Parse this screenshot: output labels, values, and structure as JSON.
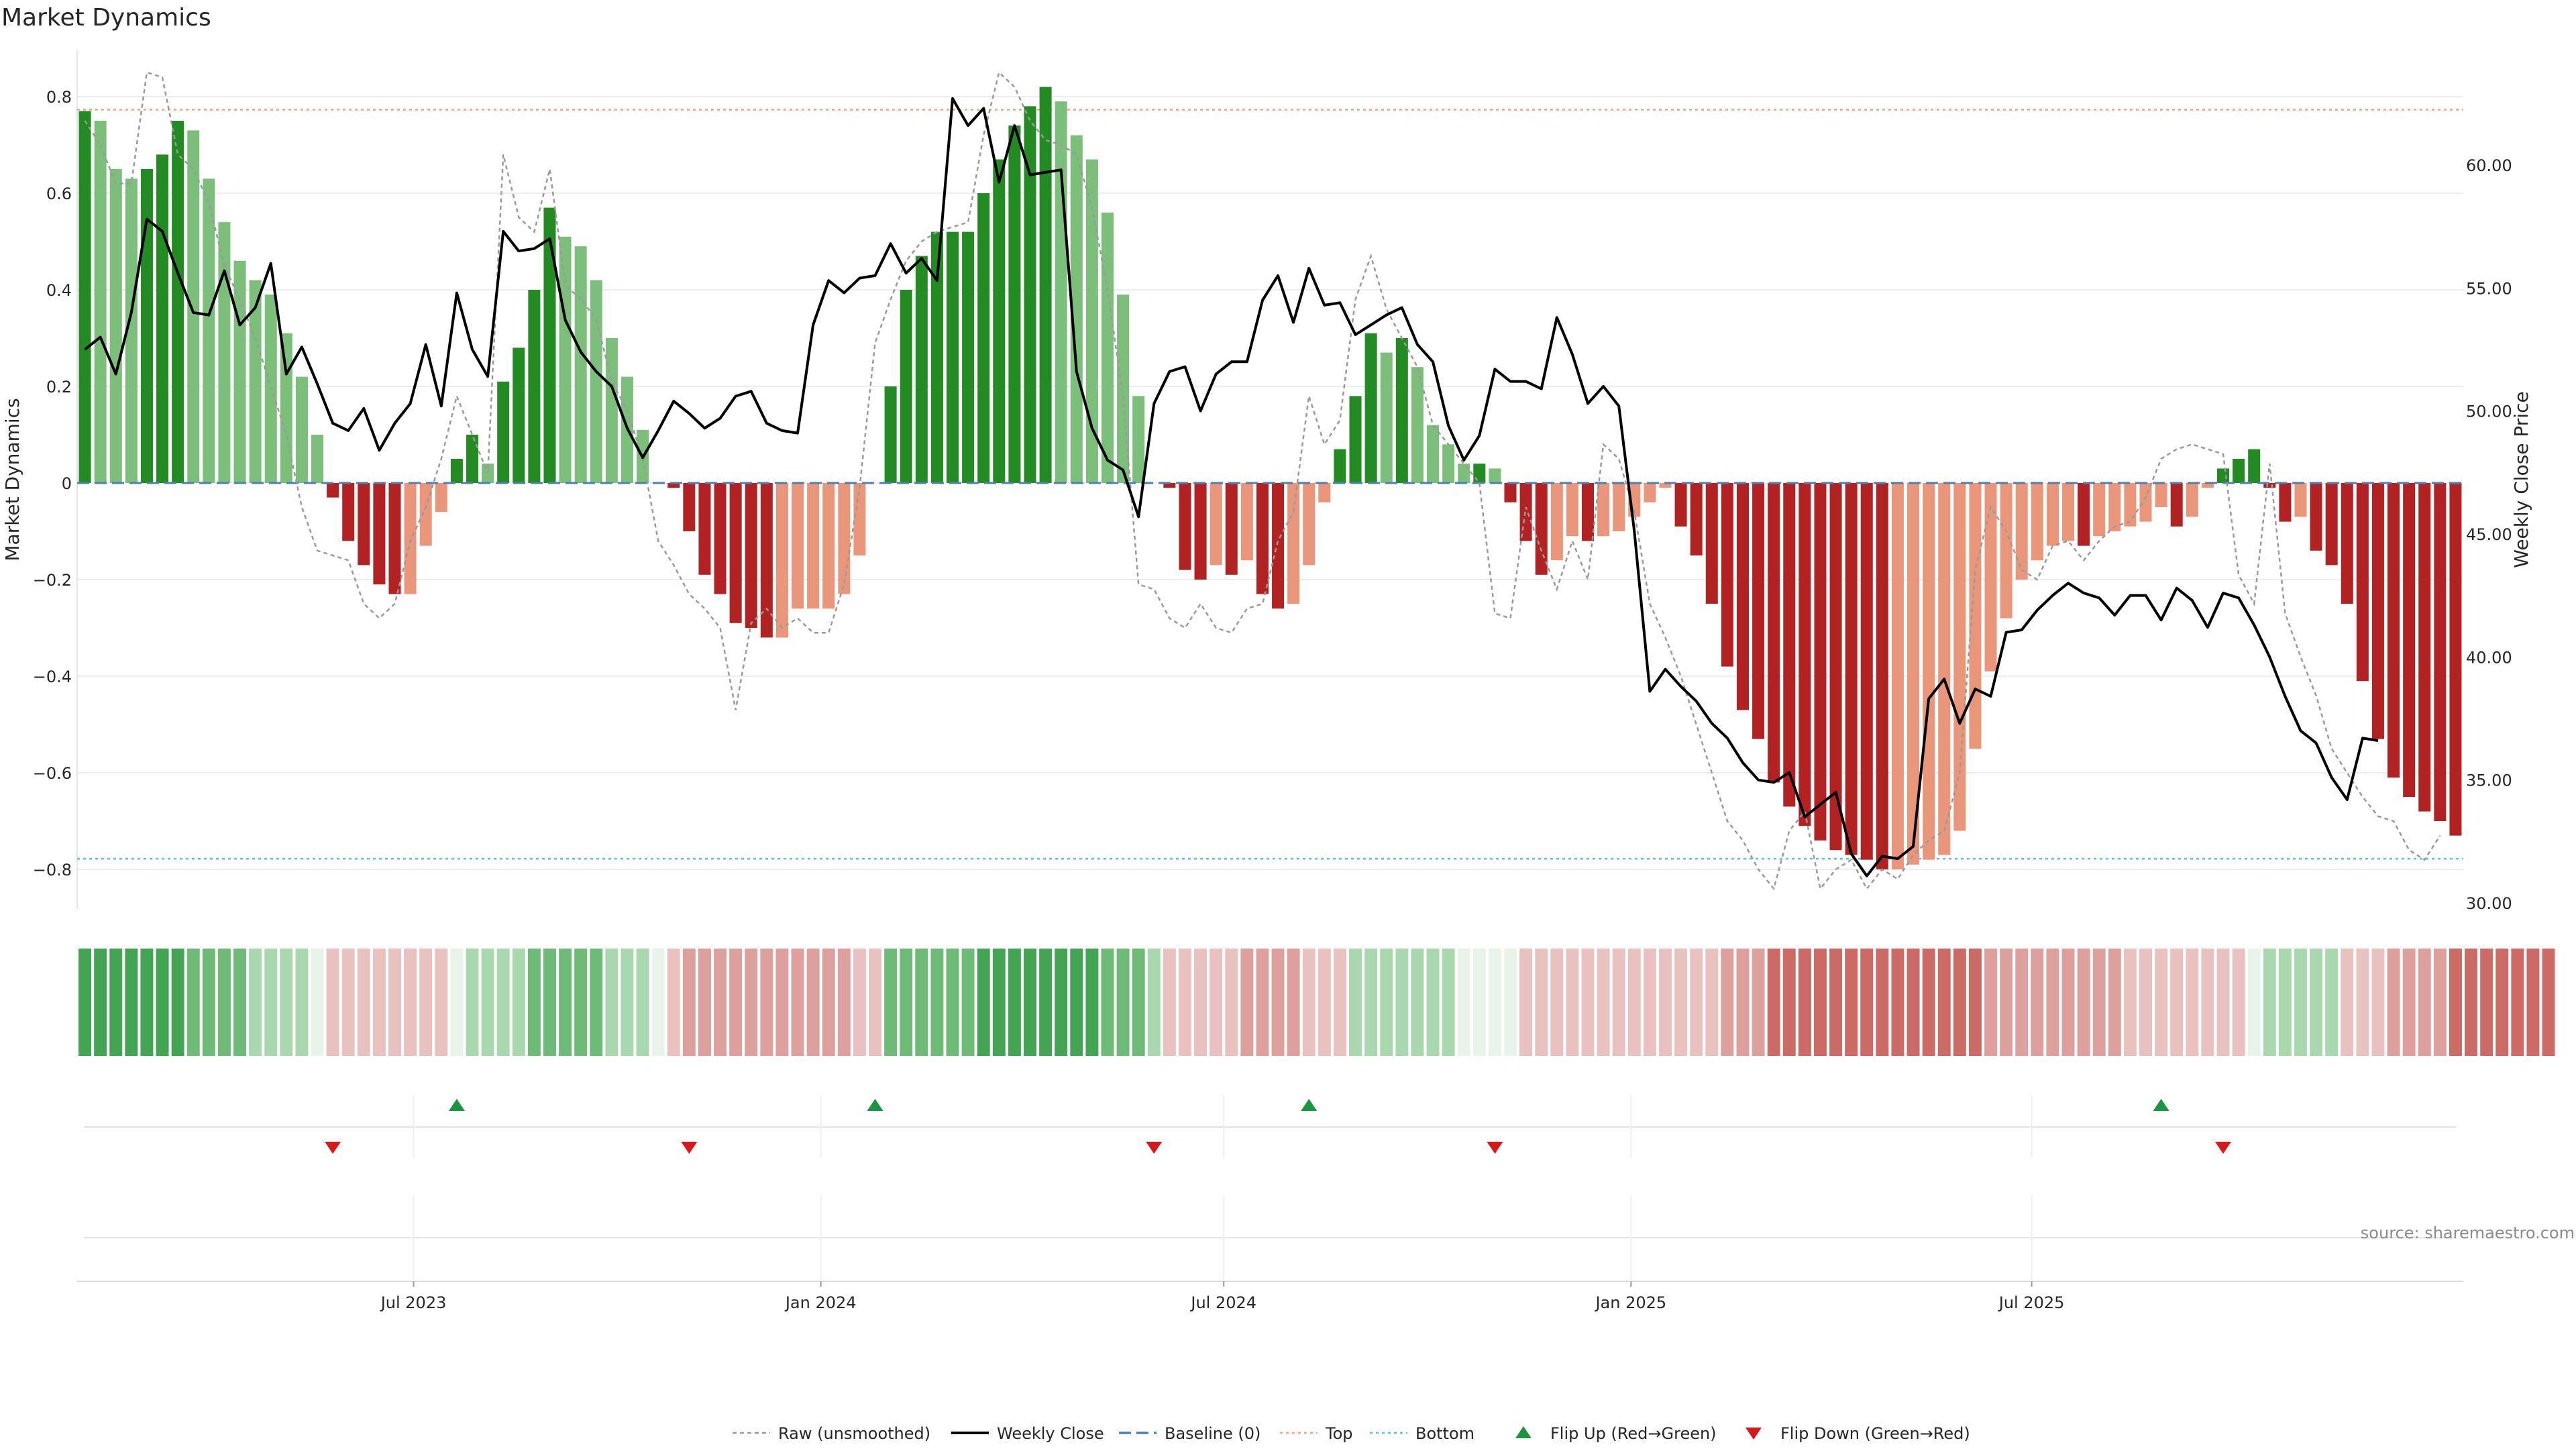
{
  "title": "Market Dynamics",
  "source": "source: sharemaestro.com",
  "axes": {
    "left_label": "Market Dynamics",
    "right_label": "Weekly Close Price",
    "left_ticks": [
      "0.8",
      "0.6",
      "0.4",
      "0.2",
      "0",
      "−0.2",
      "−0.4",
      "−0.6",
      "−0.8"
    ],
    "right_ticks": [
      "60.00",
      "55.00",
      "50.00",
      "45.00",
      "40.00",
      "35.00",
      "30.00"
    ],
    "x_ticks": [
      "Jul 2023",
      "Jan 2024",
      "Jul 2024",
      "Jan 2025",
      "Jul 2025"
    ]
  },
  "legend": [
    {
      "key": "raw",
      "label": "Raw (unsmoothed)"
    },
    {
      "key": "close",
      "label": "Weekly Close"
    },
    {
      "key": "baseline",
      "label": "Baseline (0)"
    },
    {
      "key": "top",
      "label": "Top"
    },
    {
      "key": "bottom",
      "label": "Bottom"
    },
    {
      "key": "flip_up",
      "label": "Flip Up (Red→Green)"
    },
    {
      "key": "flip_down",
      "label": "Flip Down (Green→Red)"
    }
  ],
  "colors": {
    "dark_green": "#228b22",
    "light_green": "#7bbf7b",
    "dark_red": "#b22222",
    "light_red": "#e9967a",
    "close_line": "#000000",
    "raw_line": "#9a9a9a",
    "baseline": "#4f7fb3",
    "top": "#f0a47d",
    "bottom": "#5fbfcf",
    "flip_up": "#1a9641",
    "flip_down": "#d7191c"
  },
  "chart_data": {
    "type": "bar",
    "first_week": "2023-01-30",
    "x_ticks": [
      "Jul 2023",
      "Jan 2024",
      "Jul 2024",
      "Jan 2025",
      "Jul 2025"
    ],
    "ylim": [
      -0.88,
      0.88
    ],
    "ylim_right": [
      29.5,
      64.5
    ],
    "top_line": 0.773,
    "bottom_line": -0.778,
    "baseline": 0,
    "series": [
      {
        "name": "Market Dynamics",
        "type": "bar",
        "values": [
          0.77,
          0.75,
          0.65,
          0.63,
          0.65,
          0.68,
          0.75,
          0.73,
          0.63,
          0.54,
          0.46,
          0.42,
          0.39,
          0.31,
          0.22,
          0.1,
          -0.03,
          -0.12,
          -0.17,
          -0.21,
          -0.23,
          -0.23,
          -0.13,
          -0.06,
          0.05,
          0.1,
          0.04,
          0.21,
          0.28,
          0.4,
          0.57,
          0.51,
          0.49,
          0.42,
          0.3,
          0.22,
          0.11,
          0,
          -0.01,
          -0.1,
          -0.19,
          -0.23,
          -0.29,
          -0.3,
          -0.32,
          -0.32,
          -0.26,
          -0.26,
          -0.26,
          -0.23,
          -0.15,
          0,
          0.2,
          0.4,
          0.47,
          0.52,
          0.52,
          0.52,
          0.6,
          0.67,
          0.74,
          0.78,
          0.82,
          0.79,
          0.72,
          0.67,
          0.56,
          0.39,
          0.18,
          0,
          -0.01,
          -0.18,
          -0.2,
          -0.17,
          -0.19,
          -0.16,
          -0.23,
          -0.26,
          -0.25,
          -0.17,
          -0.04,
          0.07,
          0.18,
          0.31,
          0.27,
          0.3,
          0.24,
          0.12,
          0.08,
          0.04,
          0.04,
          0.03,
          -0.04,
          -0.12,
          -0.19,
          -0.16,
          -0.11,
          -0.12,
          -0.11,
          -0.1,
          -0.07,
          -0.04,
          -0.01,
          -0.09,
          -0.15,
          -0.25,
          -0.38,
          -0.47,
          -0.53,
          -0.62,
          -0.67,
          -0.71,
          -0.74,
          -0.76,
          -0.77,
          -0.78,
          -0.8,
          -0.8,
          -0.79,
          -0.78,
          -0.77,
          -0.72,
          -0.55,
          -0.39,
          -0.28,
          -0.2,
          -0.16,
          -0.13,
          -0.12,
          -0.13,
          -0.11,
          -0.1,
          -0.09,
          -0.08,
          -0.05,
          -0.09,
          -0.07,
          -0.01,
          0.03,
          0.05,
          0.07,
          -0.01,
          -0.08,
          -0.07,
          -0.14,
          -0.17,
          -0.25,
          -0.41,
          -0.53,
          -0.61,
          -0.65,
          -0.68,
          -0.7,
          -0.73
        ]
      },
      {
        "name": "Raw (unsmoothed)",
        "type": "line",
        "values": [
          0.75,
          0.7,
          0.62,
          0.62,
          0.85,
          0.84,
          0.68,
          0.65,
          0.58,
          0.45,
          0.38,
          0.3,
          0.2,
          0.1,
          -0.05,
          -0.14,
          -0.15,
          -0.16,
          -0.25,
          -0.28,
          -0.25,
          -0.12,
          -0.05,
          0.05,
          0.18,
          0.1,
          0.02,
          0.68,
          0.55,
          0.52,
          0.65,
          0.41,
          0.38,
          0.34,
          0.21,
          0.15,
          0.05,
          -0.12,
          -0.17,
          -0.23,
          -0.26,
          -0.3,
          -0.47,
          -0.29,
          -0.26,
          -0.3,
          -0.28,
          -0.31,
          -0.31,
          -0.21,
          -0.01,
          0.29,
          0.38,
          0.46,
          0.5,
          0.52,
          0.53,
          0.54,
          0.72,
          0.85,
          0.82,
          0.75,
          0.71,
          0.7,
          0.68,
          0.57,
          0.4,
          0.18,
          -0.21,
          -0.22,
          -0.28,
          -0.3,
          -0.25,
          -0.3,
          -0.31,
          -0.26,
          -0.25,
          -0.12,
          -0.06,
          0.18,
          0.08,
          0.13,
          0.38,
          0.47,
          0.36,
          0.3,
          0.24,
          0.12,
          0.08,
          0.04,
          0.0,
          -0.27,
          -0.28,
          -0.05,
          -0.14,
          -0.22,
          -0.12,
          -0.2,
          0.08,
          0.05,
          -0.06,
          -0.25,
          -0.32,
          -0.4,
          -0.5,
          -0.6,
          -0.7,
          -0.74,
          -0.8,
          -0.84,
          -0.72,
          -0.68,
          -0.84,
          -0.8,
          -0.78,
          -0.84,
          -0.8,
          -0.82,
          -0.77,
          -0.74,
          -0.72,
          -0.6,
          -0.18,
          -0.05,
          -0.1,
          -0.18,
          -0.2,
          -0.13,
          -0.12,
          -0.16,
          -0.12,
          -0.09,
          -0.08,
          -0.03,
          0.05,
          0.07,
          0.08,
          0.07,
          0.06,
          -0.19,
          -0.25,
          0.04,
          -0.27,
          -0.36,
          -0.44,
          -0.55,
          -0.6,
          -0.65,
          -0.69,
          -0.7,
          -0.76,
          -0.78,
          -0.73
        ]
      },
      {
        "name": "Weekly Close",
        "type": "line",
        "axis": "right",
        "values": [
          52.5,
          53,
          51.5,
          54,
          57.8,
          57.3,
          55.6,
          54,
          53.9,
          55.7,
          53.5,
          54.2,
          56,
          51.5,
          52.6,
          51.1,
          49.5,
          49.2,
          50.1,
          48.4,
          49.5,
          50.3,
          52.7,
          50.2,
          54.8,
          52.5,
          51.4,
          57.3,
          56.5,
          56.6,
          57,
          53.7,
          52.4,
          51.6,
          51,
          49.3,
          48.1,
          49.2,
          50.4,
          49.9,
          49.3,
          49.7,
          50.6,
          50.8,
          49.5,
          49.2,
          49.1,
          53.5,
          55.3,
          54.8,
          55.4,
          55.5,
          56.8,
          55.6,
          56.2,
          55.3,
          62.7,
          61.6,
          62.3,
          59.3,
          61.6,
          59.6,
          59.7,
          59.8,
          51.6,
          49.3,
          48,
          47.6,
          45.7,
          50.3,
          51.6,
          51.8,
          50,
          51.5,
          52,
          52,
          54.5,
          55.5,
          53.6,
          55.8,
          54.3,
          54.4,
          53.1,
          53.5,
          53.9,
          54.2,
          52.7,
          52,
          49.4,
          48,
          49,
          51.7,
          51.2,
          51.2,
          50.9,
          53.8,
          52.3,
          50.3,
          51,
          50.2,
          45.1,
          38.6,
          39.5,
          38.8,
          38.2,
          37.3,
          36.7,
          35.7,
          35,
          34.9,
          35.3,
          33.5,
          34,
          34.5,
          32,
          31.1,
          31.9,
          31.8,
          32.3,
          38.3,
          39.1,
          37.3,
          38.7,
          38.4,
          41,
          41.1,
          41.9,
          42.5,
          43,
          42.6,
          42.4,
          41.7,
          42.5,
          42.5,
          41.5,
          42.8,
          42.3,
          41.2,
          42.6,
          42.4,
          41.3,
          40,
          38.4,
          37,
          36.5,
          35.1,
          34.2,
          36.7,
          36.6
        ]
      }
    ],
    "regime_strip": [
      3,
      3,
      3,
      3,
      3,
      3,
      3,
      2,
      2,
      2,
      2,
      1,
      1,
      1,
      1,
      0,
      -1,
      -1,
      -1,
      -1,
      -1,
      -1,
      -1,
      -1,
      0,
      1,
      1,
      1,
      1,
      2,
      2,
      2,
      2,
      2,
      1,
      1,
      1,
      0,
      -1,
      -2,
      -2,
      -2,
      -2,
      -2,
      -2,
      -2,
      -2,
      -2,
      -2,
      -2,
      -1,
      -1,
      2,
      2,
      2,
      2,
      2,
      2,
      3,
      3,
      3,
      3,
      3,
      3,
      3,
      3,
      2,
      2,
      2,
      1,
      -1,
      -1,
      -1,
      -1,
      -1,
      -2,
      -2,
      -2,
      -2,
      -1,
      -1,
      -1,
      1,
      1,
      1,
      1,
      1,
      1,
      1,
      0,
      0,
      0,
      0,
      -1,
      -1,
      -1,
      -1,
      -1,
      -1,
      -1,
      -1,
      -1,
      -1,
      -1,
      -1,
      -1,
      -2,
      -2,
      -2,
      -3,
      -3,
      -3,
      -3,
      -3,
      -3,
      -3,
      -3,
      -3,
      -3,
      -3,
      -3,
      -3,
      -3,
      -2,
      -2,
      -2,
      -2,
      -2,
      -2,
      -2,
      -2,
      -2,
      -1,
      -1,
      -1,
      -1,
      -1,
      -1,
      -1,
      -1,
      0,
      1,
      1,
      1,
      1,
      1,
      -1,
      -1,
      -1,
      -2,
      -2,
      -2,
      -2,
      -3,
      -3,
      -3,
      -3,
      -3,
      -3,
      -3
    ],
    "flip_up_weeks": [
      24,
      51,
      79,
      134
    ],
    "flip_down_weeks": [
      16,
      39,
      69,
      91,
      138
    ]
  }
}
